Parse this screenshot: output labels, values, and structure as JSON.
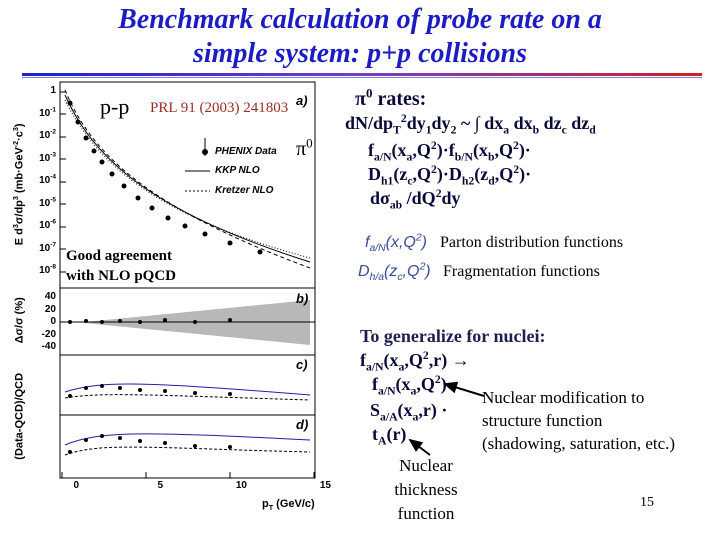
{
  "title": [
    "Benchmark calculation of probe rate on a",
    "simple system: p+p collisions"
  ],
  "plot": {
    "system": "p-p",
    "reference": "PRL 91 (2003) 241803",
    "panels": [
      "a)",
      "b)",
      "c)",
      "d)"
    ],
    "legend": [
      "PHENIX Data",
      "KKP NLO",
      "Kretzer NLO"
    ],
    "particle": [
      {
        "t": "π"
      },
      {
        "sup": "0"
      }
    ],
    "note": [
      "Good agreement",
      "with NLO pQCD"
    ],
    "y_title_a": [
      {
        "t": "E d"
      },
      {
        "sup": "3"
      },
      {
        "t": "σ/dp"
      },
      {
        "sup": "3"
      },
      {
        "t": " (mb·GeV"
      },
      {
        "sup": "-2"
      },
      {
        "t": "·c"
      },
      {
        "sup": "3"
      },
      {
        "t": ")"
      }
    ],
    "y_ticks_a": [
      [
        {
          "t": "1"
        }
      ],
      [
        {
          "t": "10"
        },
        {
          "sup": "-1"
        }
      ],
      [
        {
          "t": "10"
        },
        {
          "sup": "-2"
        }
      ],
      [
        {
          "t": "10"
        },
        {
          "sup": "-3"
        }
      ],
      [
        {
          "t": "10"
        },
        {
          "sup": "-4"
        }
      ],
      [
        {
          "t": "10"
        },
        {
          "sup": "-5"
        }
      ],
      [
        {
          "t": "10"
        },
        {
          "sup": "-6"
        }
      ],
      [
        {
          "t": "10"
        },
        {
          "sup": "-7"
        }
      ],
      [
        {
          "t": "10"
        },
        {
          "sup": "-8"
        }
      ]
    ],
    "y_title_b": "Δσ/σ (%)",
    "y_ticks_b": [
      "40",
      "20",
      "0",
      "-20",
      "-40"
    ],
    "y_title_cd": "(Data-QCD)/QCD",
    "x_ticks": [
      "0",
      "5",
      "10",
      "15"
    ],
    "x_title": [
      {
        "t": "p"
      },
      {
        "sub": "T"
      },
      {
        "t": " (GeV/c)"
      }
    ]
  },
  "formula": [
    [
      {
        "t": "π"
      },
      {
        "sup": "0"
      },
      {
        "t": " rates:"
      }
    ],
    [
      {
        "t": "dN/dp"
      },
      {
        "sub": "T"
      },
      {
        "sup": "2"
      },
      {
        "t": "dy"
      },
      {
        "sub": "1"
      },
      {
        "t": "dy"
      },
      {
        "sub": "2"
      },
      {
        "t": " ~ ∫ dx"
      },
      {
        "sub": "a"
      },
      {
        "t": " dx"
      },
      {
        "sub": "b"
      },
      {
        "t": " dz"
      },
      {
        "sub": "c"
      },
      {
        "t": " dz"
      },
      {
        "sub": "d"
      }
    ],
    [
      {
        "t": "f"
      },
      {
        "sub": "a/N"
      },
      {
        "t": "(x"
      },
      {
        "sub": "a"
      },
      {
        "t": ",Q"
      },
      {
        "sup": "2"
      },
      {
        "t": ")·f"
      },
      {
        "sub": "b/N"
      },
      {
        "t": "(x"
      },
      {
        "sub": "b"
      },
      {
        "t": ",Q"
      },
      {
        "sup": "2"
      },
      {
        "t": ")·"
      }
    ],
    [
      {
        "t": "D"
      },
      {
        "sub": "h1"
      },
      {
        "t": "(z"
      },
      {
        "sub": "c"
      },
      {
        "t": ",Q"
      },
      {
        "sup": "2"
      },
      {
        "t": ")·D"
      },
      {
        "sub": "h2"
      },
      {
        "t": "(z"
      },
      {
        "sub": "d"
      },
      {
        "t": ",Q"
      },
      {
        "sup": "2"
      },
      {
        "t": ")·"
      }
    ],
    [
      {
        "t": "dσ"
      },
      {
        "sub": "ab"
      },
      {
        "t": " /dQ"
      },
      {
        "sup": "2"
      },
      {
        "t": "dy"
      }
    ]
  ],
  "definitions": [
    {
      "symbol": [
        {
          "t": "f"
        },
        {
          "sub": "a/N"
        },
        {
          "t": "(x,Q"
        },
        {
          "sup": "2"
        },
        {
          "t": ")"
        }
      ],
      "meaning": "Parton distribution functions"
    },
    {
      "symbol": [
        {
          "t": "D"
        },
        {
          "sub": "h/a"
        },
        {
          "t": "(z"
        },
        {
          "sub": "c"
        },
        {
          "t": ",Q"
        },
        {
          "sup": "2"
        },
        {
          "t": ")"
        }
      ],
      "meaning": "Fragmentation functions"
    }
  ],
  "nuclei": {
    "heading": "To generalize for nuclei:",
    "lines": [
      [
        {
          "t": "f"
        },
        {
          "sub": "a/N"
        },
        {
          "t": "(x"
        },
        {
          "sub": "a"
        },
        {
          "t": ",Q"
        },
        {
          "sup": "2"
        },
        {
          "t": ",r) →"
        }
      ],
      [
        {
          "t": "f"
        },
        {
          "sub": "a/N"
        },
        {
          "t": "(x"
        },
        {
          "sub": "a"
        },
        {
          "t": ",Q"
        },
        {
          "sup": "2"
        },
        {
          "t": ") ·"
        }
      ],
      [
        {
          "t": "S"
        },
        {
          "sub": "a/A"
        },
        {
          "t": "(x"
        },
        {
          "sub": "a"
        },
        {
          "t": ",r) ·"
        }
      ],
      [
        {
          "t": "t"
        },
        {
          "sub": "A"
        },
        {
          "t": "(r)"
        }
      ]
    ],
    "modification": [
      "Nuclear modification to",
      "structure function",
      "(shadowing, saturation, etc.)"
    ],
    "thickness": [
      "Nuclear",
      "thickness",
      "function"
    ]
  },
  "page_number": "15"
}
